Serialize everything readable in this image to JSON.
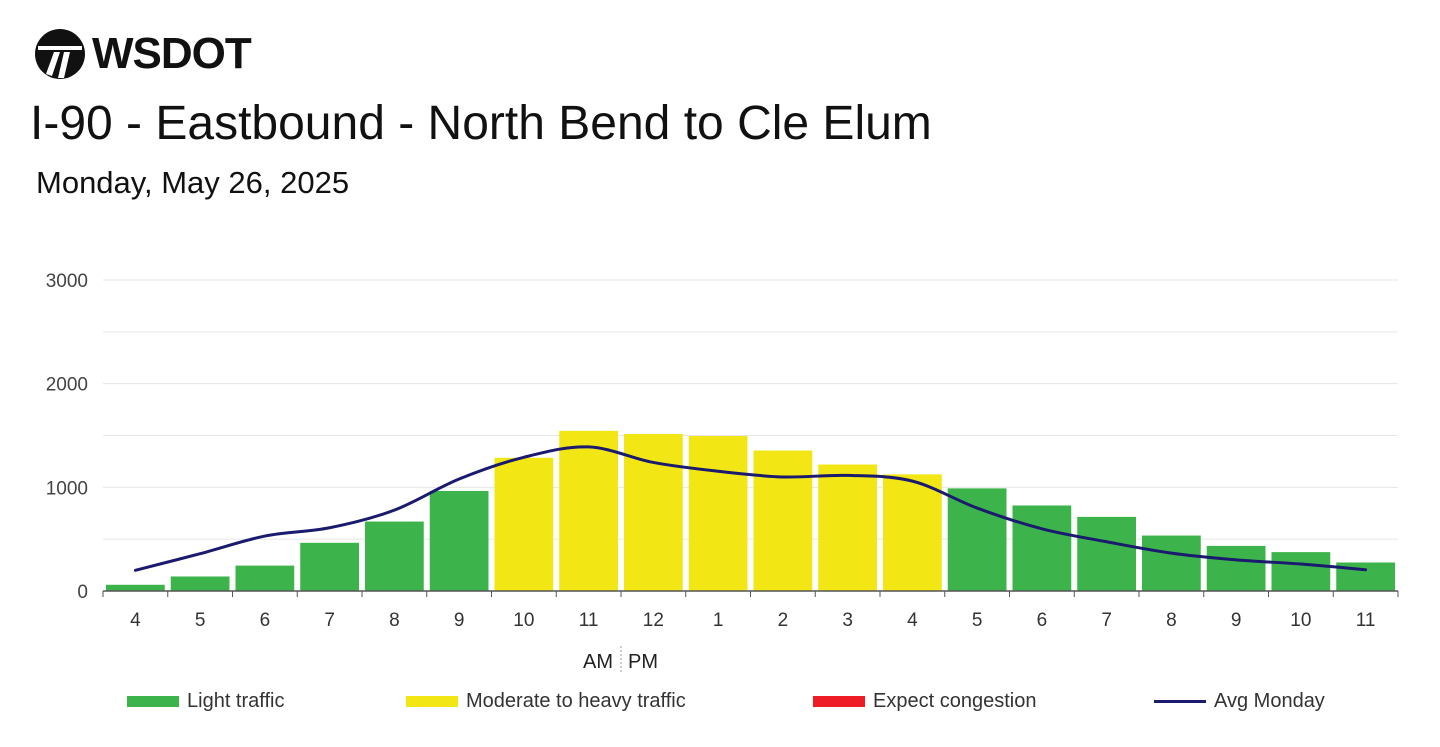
{
  "brand": {
    "name": "WSDOT",
    "logo_icon": "wsdot-logo-icon"
  },
  "header": {
    "title": "I-90 - Eastbound - North Bend to Cle Elum",
    "subtitle": "Monday, May 26, 2025"
  },
  "chart_data": {
    "type": "bar",
    "categories": [
      "4",
      "5",
      "6",
      "7",
      "8",
      "9",
      "10",
      "11",
      "12",
      "1",
      "2",
      "3",
      "4",
      "5",
      "6",
      "7",
      "8",
      "9",
      "10",
      "11"
    ],
    "values": [
      60,
      140,
      245,
      465,
      670,
      965,
      1285,
      1545,
      1515,
      1495,
      1355,
      1220,
      1125,
      990,
      825,
      715,
      535,
      435,
      375,
      275
    ],
    "bar_levels": [
      "light",
      "light",
      "light",
      "light",
      "light",
      "light",
      "moderate",
      "moderate",
      "moderate",
      "moderate",
      "moderate",
      "moderate",
      "moderate",
      "light",
      "light",
      "light",
      "light",
      "light",
      "light",
      "light"
    ],
    "avg_line": {
      "name": "Avg Monday",
      "values": [
        200,
        360,
        530,
        610,
        780,
        1080,
        1290,
        1390,
        1240,
        1155,
        1100,
        1115,
        1060,
        800,
        600,
        475,
        365,
        300,
        260,
        205
      ]
    },
    "ylim": [
      0,
      3000
    ],
    "yticks": [
      "0",
      "1000",
      "2000",
      "3000"
    ],
    "xlabel_am": "AM",
    "xlabel_pm": "PM",
    "grid": true,
    "legend_placement": "bottom",
    "colors": {
      "light": "#3cb44b",
      "moderate": "#f2e614",
      "congestion": "#ee1c24",
      "avg": "#1a1a6e",
      "grid": "#e6e6e6",
      "axis": "#555555"
    }
  },
  "legend": {
    "light": "Light traffic",
    "moderate": "Moderate to heavy traffic",
    "congestion": "Expect congestion",
    "avg": "Avg Monday"
  }
}
